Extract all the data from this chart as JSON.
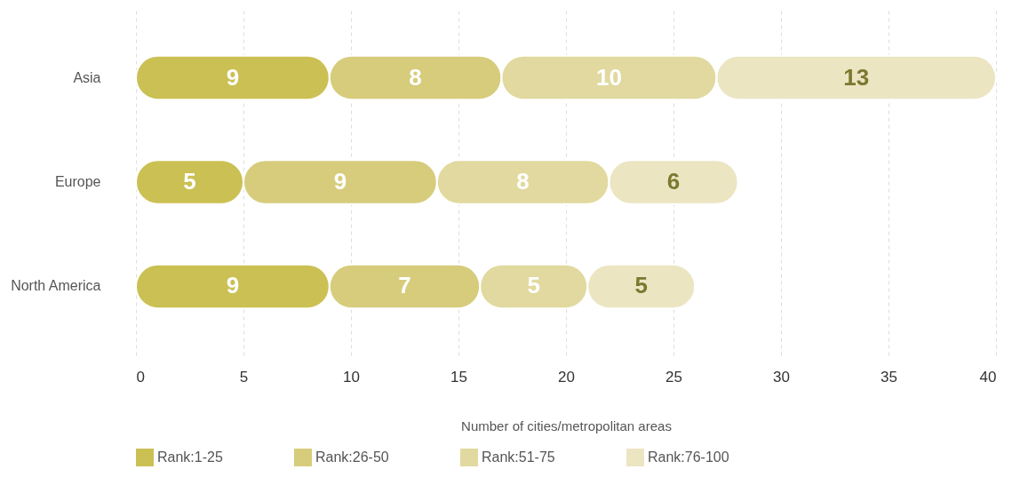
{
  "chart_data": {
    "type": "bar",
    "orientation": "horizontal",
    "stacked": true,
    "xlabel": "Number of cities/metropolitan areas",
    "categories": [
      "Asia",
      "Europe",
      "North America"
    ],
    "series": [
      {
        "name": "Rank:1-25",
        "color": "#cbc053",
        "values": [
          9,
          5,
          9
        ]
      },
      {
        "name": "Rank:26-50",
        "color": "#d6cc7c",
        "values": [
          8,
          9,
          7
        ]
      },
      {
        "name": "Rank:51-75",
        "color": "#e1d99f",
        "values": [
          10,
          8,
          5
        ]
      },
      {
        "name": "Rank:76-100",
        "color": "#ebe5c2",
        "values": [
          13,
          6,
          5
        ]
      }
    ],
    "xlim": [
      0,
      40
    ],
    "xticks": [
      0,
      5,
      10,
      15,
      20,
      25,
      30,
      35,
      40
    ],
    "grid": "x",
    "legend": "bottom",
    "data_labels": true
  }
}
